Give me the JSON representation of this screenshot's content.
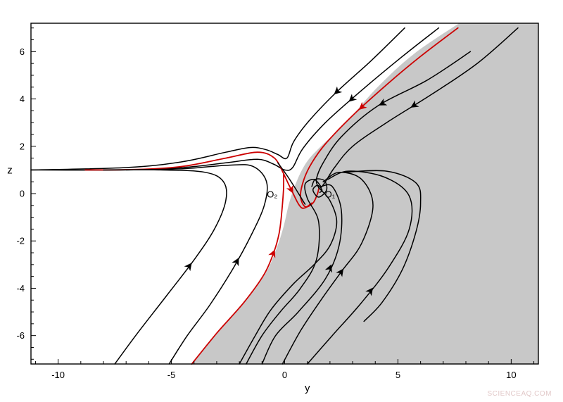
{
  "chart_data": {
    "type": "phase-portrait",
    "xlabel": "y",
    "ylabel": "z",
    "xlim": [
      -11.2,
      11.2
    ],
    "ylim": [
      -7.2,
      7.2
    ],
    "x_ticks": [
      -10,
      -5,
      0,
      5,
      10
    ],
    "y_ticks": [
      -6,
      -4,
      -2,
      0,
      2,
      4,
      6
    ],
    "annotations": [
      {
        "text": "O₂",
        "x": -0.55,
        "y": -0.05
      },
      {
        "text": "O₁",
        "x": 2.0,
        "y": -0.05
      }
    ],
    "equilibria": [
      {
        "name": "O1",
        "x": 1.55,
        "y": 0.1
      },
      {
        "name": "O2",
        "x": -0.1,
        "y": 0.85
      }
    ],
    "shaded_region_color": "#c8c8c8",
    "trajectory_color": "#000000",
    "separatrix_color": "#cc0000",
    "region_boundary": [
      [
        -4.1,
        -7.2
      ],
      [
        -3.6,
        -6.6
      ],
      [
        -2.6,
        -5.5
      ],
      [
        -1.6,
        -4.4
      ],
      [
        -0.8,
        -3.3
      ],
      [
        -0.35,
        -2.3
      ],
      [
        -0.05,
        -1.4
      ],
      [
        0.2,
        -0.4
      ],
      [
        0.5,
        0.45
      ],
      [
        0.95,
        1.3
      ],
      [
        1.6,
        2.0
      ],
      [
        2.7,
        3.0
      ],
      [
        4.1,
        4.5
      ],
      [
        5.7,
        5.9
      ],
      [
        7.7,
        7.2
      ]
    ],
    "trajectories": [
      {
        "color": "black",
        "points": [
          [
            5.3,
            7.0
          ],
          [
            3.8,
            5.6
          ],
          [
            2.3,
            4.3
          ],
          [
            1.1,
            3.1
          ],
          [
            0.4,
            2.2
          ],
          [
            0.1,
            1.5
          ],
          [
            -0.3,
            1.65
          ],
          [
            -0.8,
            1.85
          ],
          [
            -1.5,
            1.95
          ],
          [
            -2.6,
            1.75
          ],
          [
            -4.5,
            1.35
          ],
          [
            -7,
            1.1
          ],
          [
            -11.2,
            1.0
          ]
        ],
        "arrows": [
          2.3
        ]
      },
      {
        "color": "black",
        "points": [
          [
            6.8,
            7.0
          ],
          [
            5.2,
            5.8
          ],
          [
            3.2,
            4.2
          ],
          [
            1.8,
            3.0
          ],
          [
            0.8,
            1.9
          ],
          [
            0.35,
            1.1
          ],
          [
            0,
            1.0
          ],
          [
            -0.5,
            1.25
          ],
          [
            -1.2,
            1.45
          ],
          [
            -2.6,
            1.3
          ],
          [
            -4.5,
            1.1
          ],
          [
            -7,
            1.0
          ],
          [
            -11.2,
            1.0
          ]
        ],
        "arrows": [
          2.95
        ]
      },
      {
        "color": "red",
        "points": [
          [
            7.65,
            7.0
          ],
          [
            6,
            5.8
          ],
          [
            4.5,
            4.6
          ],
          [
            3,
            3.3
          ],
          [
            1.8,
            2.1
          ],
          [
            1.2,
            1.3
          ],
          [
            0.85,
            0.6
          ],
          [
            0.7,
            -0.1
          ],
          [
            0.9,
            -0.55
          ],
          [
            1.25,
            -0.4
          ],
          [
            1.45,
            0.0
          ],
          [
            1.5,
            0.2
          ]
        ],
        "arrows": [
          3.4
        ]
      },
      {
        "color": "red",
        "points": [
          [
            -0.05,
            0.85
          ],
          [
            -0.45,
            1.5
          ],
          [
            -1.2,
            1.75
          ],
          [
            -2.6,
            1.5
          ],
          [
            -4.5,
            1.15
          ],
          [
            -6.5,
            1.02
          ],
          [
            -8.8,
            1.0
          ]
        ],
        "arrows": []
      },
      {
        "color": "red",
        "points": [
          [
            -4.1,
            -7.2
          ],
          [
            -3.0,
            -5.9
          ],
          [
            -1.8,
            -4.6
          ],
          [
            -0.9,
            -3.4
          ],
          [
            -0.45,
            -2.4
          ],
          [
            -0.25,
            -1.7
          ],
          [
            -0.15,
            -1.0
          ],
          [
            -0.05,
            0.2
          ],
          [
            -0.05,
            0.85
          ]
        ],
        "arrows": [
          -0.5
        ]
      },
      {
        "color": "red",
        "points": [
          [
            -0.05,
            0.85
          ],
          [
            0.3,
            0.15
          ],
          [
            0.75,
            -0.6
          ],
          [
            1.2,
            -0.4
          ]
        ],
        "arrows": [
          0.3
        ]
      },
      {
        "color": "black",
        "points": [
          [
            10.3,
            7.0
          ],
          [
            8.5,
            5.5
          ],
          [
            6.5,
            4.2
          ],
          [
            4.5,
            3.0
          ],
          [
            3.0,
            2.0
          ],
          [
            2.2,
            1.1
          ],
          [
            1.8,
            0.5
          ],
          [
            1.6,
            0.25
          ]
        ],
        "arrows": [
          5.7
        ]
      },
      {
        "color": "black",
        "points": [
          [
            8.2,
            6.0
          ],
          [
            6.3,
            4.8
          ],
          [
            4.1,
            3.7
          ],
          [
            2.5,
            2.4
          ],
          [
            1.7,
            1.3
          ],
          [
            1.4,
            0.6
          ],
          [
            1.5,
            0.25
          ]
        ],
        "arrows": [
          4.3
        ]
      },
      {
        "color": "black",
        "points": [
          [
            -0.3,
            1.3
          ],
          [
            0.15,
            0.7
          ],
          [
            0.55,
            0.1
          ],
          [
            0.9,
            -0.45
          ]
        ],
        "arrows": []
      },
      {
        "color": "black",
        "points": [
          [
            -7.5,
            -7.2
          ],
          [
            -6.5,
            -5.9
          ],
          [
            -5.2,
            -4.3
          ],
          [
            -4.0,
            -2.8
          ],
          [
            -3.1,
            -1.5
          ],
          [
            -2.6,
            -0.3
          ],
          [
            -2.7,
            0.5
          ],
          [
            -3.5,
            0.9
          ],
          [
            -5.5,
            1.0
          ],
          [
            -8,
            1.0
          ]
        ],
        "arrows": [
          -4.2
        ]
      },
      {
        "color": "black",
        "points": [
          [
            -5.1,
            -7.2
          ],
          [
            -4.3,
            -6.0
          ],
          [
            -3.3,
            -4.7
          ],
          [
            -2.3,
            -3.2
          ],
          [
            -1.5,
            -1.8
          ],
          [
            -0.9,
            -0.5
          ],
          [
            -0.8,
            0.5
          ],
          [
            -1.4,
            1.15
          ],
          [
            -2.5,
            1.2
          ],
          [
            -4.5,
            1.05
          ],
          [
            -7,
            1.0
          ]
        ],
        "arrows": [
          -2.1
        ]
      },
      {
        "color": "black",
        "points": [
          [
            -1.7,
            -7.2
          ],
          [
            -1.0,
            -6.0
          ],
          [
            -0.2,
            -5.0
          ],
          [
            0.7,
            -4.0
          ],
          [
            1.4,
            -2.8
          ],
          [
            1.5,
            -1.2
          ],
          [
            1.0,
            -0.2
          ],
          [
            0.9,
            0.4
          ],
          [
            1.3,
            0.6
          ],
          [
            1.6,
            0.3
          ]
        ],
        "arrows": []
      },
      {
        "color": "black",
        "points": [
          [
            -2.0,
            -7.2
          ],
          [
            -1.3,
            -6.0
          ],
          [
            -0.6,
            -4.9
          ],
          [
            0.4,
            -3.8
          ],
          [
            1.3,
            -3.0
          ],
          [
            2.0,
            -2.2
          ],
          [
            2.3,
            -1.2
          ],
          [
            2.0,
            -0.3
          ],
          [
            1.5,
            0.25
          ]
        ],
        "arrows": []
      },
      {
        "color": "black",
        "points": [
          [
            -1.0,
            -7.2
          ],
          [
            -0.4,
            -6.0
          ],
          [
            0.6,
            -5.0
          ],
          [
            1.8,
            -3.6
          ],
          [
            2.4,
            -2.2
          ],
          [
            2.5,
            -0.7
          ],
          [
            2.1,
            0.3
          ],
          [
            1.6,
            0.3
          ]
        ],
        "arrows": [
          2.0
        ]
      },
      {
        "color": "black",
        "points": [
          [
            -0.1,
            -7.2
          ],
          [
            0.7,
            -5.8
          ],
          [
            1.6,
            -4.5
          ],
          [
            2.5,
            -3.3
          ],
          [
            3.4,
            -2.1
          ],
          [
            3.9,
            -0.5
          ],
          [
            3.4,
            0.6
          ],
          [
            2.4,
            0.9
          ],
          [
            1.7,
            0.5
          ]
        ],
        "arrows": [
          2.5
        ]
      },
      {
        "color": "black",
        "points": [
          [
            1.0,
            -7.2
          ],
          [
            2.1,
            -6.0
          ],
          [
            3.4,
            -4.6
          ],
          [
            4.6,
            -3.1
          ],
          [
            5.5,
            -1.5
          ],
          [
            5.5,
            -0.1
          ],
          [
            4.4,
            0.7
          ],
          [
            2.8,
            0.95
          ],
          [
            1.9,
            0.6
          ]
        ],
        "arrows": [
          3.8
        ]
      },
      {
        "color": "black",
        "points": [
          [
            2.6,
            0.9
          ],
          [
            4.5,
            0.95
          ],
          [
            5.8,
            0.45
          ],
          [
            6.0,
            -0.4
          ],
          [
            5.8,
            -1.6
          ],
          [
            5.2,
            -3.2
          ],
          [
            4.3,
            -4.6
          ],
          [
            3.5,
            -5.4
          ]
        ],
        "arrows": []
      },
      {
        "color": "black",
        "points": [
          [
            1.2,
            0.3
          ],
          [
            1.35,
            0.6
          ],
          [
            1.75,
            0.55
          ],
          [
            1.85,
            0.15
          ],
          [
            1.5,
            -0.15
          ],
          [
            1.25,
            0.15
          ],
          [
            1.45,
            0.35
          ],
          [
            1.65,
            0.15
          ],
          [
            1.55,
            0.05
          ]
        ],
        "arrows": []
      }
    ]
  },
  "watermark": "SCIENCEAQ.COM"
}
